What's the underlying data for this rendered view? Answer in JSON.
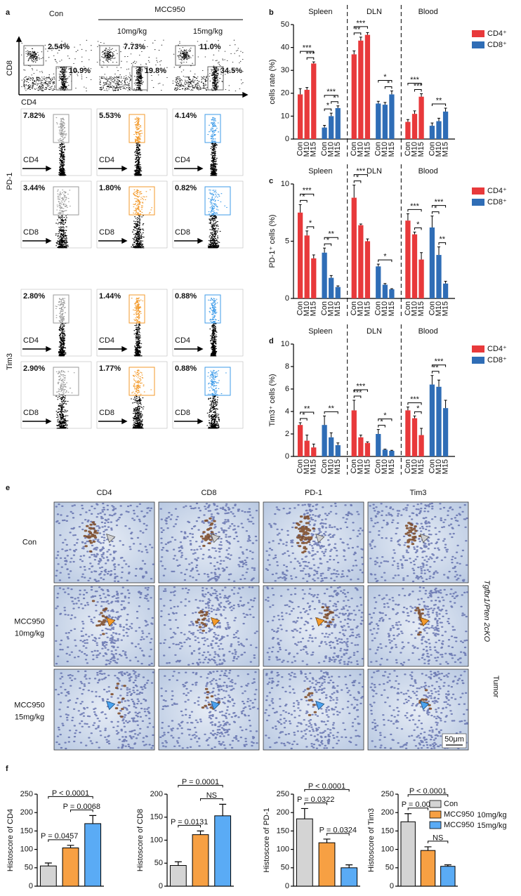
{
  "panel_labels": [
    "a",
    "b",
    "c",
    "d",
    "e",
    "f"
  ],
  "panel_a": {
    "control": "Con",
    "treatment": "MCC950",
    "doses": [
      "10mg/kg",
      "15mg/kg"
    ],
    "column_colors": [
      "#9a9a9a",
      "#f39a2b",
      "#3d9be9"
    ],
    "overview": {
      "y_axis": "CD8",
      "x_axis": "CD4",
      "percentages": [
        [
          "2.54%",
          "10.9%"
        ],
        [
          "7.73%",
          "19.8%"
        ],
        [
          "11.0%",
          "34.5%"
        ]
      ]
    },
    "markers": [
      {
        "name": "PD-1",
        "rows": [
          {
            "x_axis": "CD4",
            "percentages": [
              "7.82%",
              "5.53%",
              "4.14%"
            ]
          },
          {
            "x_axis": "CD8",
            "percentages": [
              "3.44%",
              "1.80%",
              "0.82%"
            ]
          }
        ]
      },
      {
        "name": "Tim3",
        "rows": [
          {
            "x_axis": "CD4",
            "percentages": [
              "2.80%",
              "1.44%",
              "0.88%"
            ]
          },
          {
            "x_axis": "CD8",
            "percentages": [
              "2.90%",
              "1.77%",
              "0.88%"
            ]
          }
        ]
      }
    ]
  },
  "chart_data": [
    {
      "type": "grouped_bar",
      "ylabel": "cells rate (%)",
      "groups": [
        "Spleen",
        "DLN",
        "Blood"
      ],
      "categories": [
        "Con",
        "M10",
        "M15"
      ],
      "ylim": [
        0,
        50
      ],
      "yticks": [
        0,
        10,
        20,
        30,
        40,
        50
      ],
      "series": [
        {
          "name": "CD4⁺",
          "color": "#e8393b",
          "values": [
            [
              19.5,
              21.5,
              33
            ],
            [
              37,
              43,
              45.5
            ],
            [
              7.5,
              11,
              18.5
            ]
          ],
          "errors": [
            [
              2.5,
              1,
              0.7
            ],
            [
              1.5,
              1.5,
              1
            ],
            [
              1,
              1.3,
              1.3
            ]
          ]
        },
        {
          "name": "CD8⁺",
          "color": "#2f6db6",
          "values": [
            [
              5,
              10,
              13.5
            ],
            [
              15.5,
              15,
              19.5
            ],
            [
              5.8,
              7.8,
              12
            ]
          ],
          "errors": [
            [
              1,
              1.3,
              1
            ],
            [
              1,
              1,
              1.5
            ],
            [
              1.2,
              1.3,
              1.5
            ]
          ]
        }
      ],
      "annotations": [
        {
          "group": 0,
          "series": 0,
          "pair": [
            1,
            2
          ],
          "label": "***"
        },
        {
          "group": 0,
          "series": 0,
          "pair": [
            0,
            2
          ],
          "label": "***"
        },
        {
          "group": 0,
          "series": 1,
          "pair": [
            0,
            1
          ],
          "label": "*"
        },
        {
          "group": 0,
          "series": 1,
          "pair": [
            1,
            2
          ],
          "label": "*"
        },
        {
          "group": 0,
          "series": 1,
          "pair": [
            0,
            2
          ],
          "label": "***"
        },
        {
          "group": 1,
          "series": 0,
          "pair": [
            0,
            1
          ],
          "label": "**"
        },
        {
          "group": 1,
          "series": 0,
          "pair": [
            0,
            2
          ],
          "label": "***"
        },
        {
          "group": 1,
          "series": 1,
          "pair": [
            1,
            2
          ],
          "label": "*"
        },
        {
          "group": 1,
          "series": 1,
          "pair": [
            0,
            2
          ],
          "label": "*"
        },
        {
          "group": 2,
          "series": 0,
          "pair": [
            1,
            2
          ],
          "label": "***"
        },
        {
          "group": 2,
          "series": 0,
          "pair": [
            0,
            2
          ],
          "label": "***"
        },
        {
          "group": 2,
          "series": 1,
          "pair": [
            0,
            2
          ],
          "label": "**"
        }
      ]
    },
    {
      "type": "grouped_bar",
      "ylabel": "PD-1⁺ cells (%)",
      "groups": [
        "Spleen",
        "DLN",
        "Blood"
      ],
      "categories": [
        "Con",
        "M10",
        "M15"
      ],
      "ylim": [
        0,
        10
      ],
      "yticks": [
        0,
        5,
        10
      ],
      "series": [
        {
          "name": "CD4⁺",
          "color": "#e8393b",
          "values": [
            [
              7.5,
              5.5,
              3.5
            ],
            [
              8.8,
              6.4,
              5.0
            ],
            [
              6.8,
              5.6,
              3.4
            ]
          ],
          "errors": [
            [
              0.7,
              0.4,
              0.3
            ],
            [
              1.1,
              0.1,
              0.2
            ],
            [
              0.6,
              0.2,
              0.6
            ]
          ]
        },
        {
          "name": "CD8⁺",
          "color": "#2f6db6",
          "values": [
            [
              4,
              1.8,
              1.0
            ],
            [
              2.8,
              1.2,
              0.8
            ],
            [
              6.2,
              3.8,
              1.3
            ]
          ],
          "errors": [
            [
              0.4,
              0.2,
              0.1
            ],
            [
              0.2,
              0.1,
              0.05
            ],
            [
              1.0,
              0.7,
              0.2
            ]
          ]
        }
      ],
      "annotations": [
        {
          "group": 0,
          "series": 0,
          "pair": [
            0,
            1
          ],
          "label": "*"
        },
        {
          "group": 0,
          "series": 0,
          "pair": [
            1,
            2
          ],
          "label": "*"
        },
        {
          "group": 0,
          "series": 0,
          "pair": [
            0,
            2
          ],
          "label": "***"
        },
        {
          "group": 0,
          "series": 1,
          "pair": [
            0,
            1
          ],
          "label": "*"
        },
        {
          "group": 0,
          "series": 1,
          "pair": [
            0,
            2
          ],
          "label": "**"
        },
        {
          "group": 1,
          "series": 0,
          "pair": [
            0,
            1
          ],
          "label": "*"
        },
        {
          "group": 1,
          "series": 0,
          "pair": [
            0,
            2
          ],
          "label": "***"
        },
        {
          "group": 1,
          "series": 1,
          "pair": [
            0,
            2
          ],
          "label": "*"
        },
        {
          "group": 2,
          "series": 0,
          "pair": [
            1,
            2
          ],
          "label": "*"
        },
        {
          "group": 2,
          "series": 0,
          "pair": [
            0,
            2
          ],
          "label": "***"
        },
        {
          "group": 2,
          "series": 1,
          "pair": [
            0,
            1
          ],
          "label": "*"
        },
        {
          "group": 2,
          "series": 1,
          "pair": [
            1,
            2
          ],
          "label": "**"
        },
        {
          "group": 2,
          "series": 1,
          "pair": [
            0,
            2
          ],
          "label": "***"
        }
      ]
    },
    {
      "type": "grouped_bar",
      "ylabel": "Tim3⁺ cells (%)",
      "groups": [
        "Spleen",
        "DLN",
        "Blood"
      ],
      "categories": [
        "Con",
        "M10",
        "M15"
      ],
      "ylim": [
        0,
        10
      ],
      "yticks": [
        0,
        2,
        4,
        6,
        8,
        10
      ],
      "series": [
        {
          "name": "CD4⁺",
          "color": "#e8393b",
          "values": [
            [
              2.8,
              1.4,
              0.8
            ],
            [
              4.1,
              1.7,
              1.2
            ],
            [
              4.1,
              3.4,
              1.9
            ]
          ],
          "errors": [
            [
              0.2,
              0.5,
              0.3
            ],
            [
              0.9,
              0.2,
              0.1
            ],
            [
              0.3,
              0.2,
              0.6
            ]
          ]
        },
        {
          "name": "CD8⁺",
          "color": "#2f6db6",
          "values": [
            [
              2.8,
              1.7,
              1.0
            ],
            [
              2.0,
              0.6,
              0.5
            ],
            [
              6.4,
              6.2,
              4.3
            ]
          ],
          "errors": [
            [
              0.8,
              0.4,
              0.2
            ],
            [
              0.4,
              0.05,
              0.05
            ],
            [
              0.8,
              0.6,
              0.7
            ]
          ]
        }
      ],
      "annotations": [
        {
          "group": 0,
          "series": 0,
          "pair": [
            0,
            1
          ],
          "label": "*"
        },
        {
          "group": 0,
          "series": 0,
          "pair": [
            0,
            2
          ],
          "label": "**"
        },
        {
          "group": 0,
          "series": 1,
          "pair": [
            0,
            2
          ],
          "label": "**"
        },
        {
          "group": 1,
          "series": 0,
          "pair": [
            0,
            1
          ],
          "label": "***"
        },
        {
          "group": 1,
          "series": 0,
          "pair": [
            0,
            2
          ],
          "label": "***"
        },
        {
          "group": 1,
          "series": 1,
          "pair": [
            0,
            1
          ],
          "label": "*"
        },
        {
          "group": 1,
          "series": 1,
          "pair": [
            0,
            2
          ],
          "label": "*"
        },
        {
          "group": 2,
          "series": 0,
          "pair": [
            1,
            2
          ],
          "label": "*"
        },
        {
          "group": 2,
          "series": 0,
          "pair": [
            0,
            2
          ],
          "label": "***"
        },
        {
          "group": 2,
          "series": 1,
          "pair": [
            0,
            1
          ],
          "label": "**"
        },
        {
          "group": 2,
          "series": 1,
          "pair": [
            0,
            2
          ],
          "label": "***"
        }
      ]
    },
    {
      "type": "bar",
      "ylabel": "Histoscore of CD4",
      "ylim": [
        0,
        250
      ],
      "yticks": [
        0,
        50,
        100,
        150,
        200,
        250
      ],
      "values": [
        55,
        104,
        170
      ],
      "errors": [
        8,
        7,
        22
      ],
      "colors": [
        "#d4d4d4",
        "#f7a043",
        "#5aabf5"
      ],
      "annotations": [
        {
          "pair": [
            0,
            1
          ],
          "label": "P = 0.0457"
        },
        {
          "pair": [
            1,
            2
          ],
          "label": "P = 0.0068"
        },
        {
          "pair": [
            0,
            2
          ],
          "label": "P < 0.0001"
        }
      ]
    },
    {
      "type": "bar",
      "ylabel": "Histoscore of CD8",
      "ylim": [
        0,
        200
      ],
      "yticks": [
        0,
        50,
        100,
        150,
        200
      ],
      "values": [
        45,
        112,
        153
      ],
      "errors": [
        8,
        8,
        25
      ],
      "colors": [
        "#d4d4d4",
        "#f7a043",
        "#5aabf5"
      ],
      "annotations": [
        {
          "pair": [
            0,
            1
          ],
          "label": "P = 0.0131"
        },
        {
          "pair": [
            1,
            2
          ],
          "label": "NS"
        },
        {
          "pair": [
            0,
            2
          ],
          "label": "P = 0.0001"
        }
      ]
    },
    {
      "type": "bar",
      "ylabel": "Histoscore of PD-1",
      "ylim": [
        0,
        250
      ],
      "yticks": [
        0,
        50,
        100,
        150,
        200,
        250
      ],
      "values": [
        183,
        118,
        50
      ],
      "errors": [
        28,
        10,
        8
      ],
      "colors": [
        "#d4d4d4",
        "#f7a043",
        "#5aabf5"
      ],
      "annotations": [
        {
          "pair": [
            1,
            2
          ],
          "label": "P = 0.0324"
        },
        {
          "pair": [
            0,
            1
          ],
          "label": "P = 0.0322"
        },
        {
          "pair": [
            0,
            2
          ],
          "label": "P < 0.0001"
        }
      ]
    },
    {
      "type": "bar",
      "ylabel": "Histoscore of Tim3",
      "ylim": [
        0,
        250
      ],
      "yticks": [
        0,
        50,
        100,
        150,
        200,
        250
      ],
      "values": [
        175,
        97,
        54
      ],
      "errors": [
        22,
        10,
        4
      ],
      "colors": [
        "#d4d4d4",
        "#f7a043",
        "#5aabf5"
      ],
      "annotations": [
        {
          "pair": [
            1,
            2
          ],
          "label": "NS"
        },
        {
          "pair": [
            0,
            1
          ],
          "label": "P = 0.002"
        },
        {
          "pair": [
            0,
            2
          ],
          "label": "P < 0.0001"
        }
      ],
      "legend": [
        {
          "name": "Con"
        },
        {
          "name": "MCC950",
          "note": "10mg/kg"
        },
        {
          "name": "MCC950",
          "note": "15mg/kg"
        }
      ]
    }
  ],
  "panel_e": {
    "columns": [
      "CD4",
      "CD8",
      "PD-1",
      "Tim3"
    ],
    "rows": [
      {
        "name": "Con"
      },
      {
        "name": "MCC950",
        "dose": "10mg/kg"
      },
      {
        "name": "MCC950",
        "dose": "15mg/kg"
      }
    ],
    "side_title": "Tgfbr1/Pten 2cKO",
    "side_subtitle": "Tumor",
    "scale_bar": "50μm"
  }
}
